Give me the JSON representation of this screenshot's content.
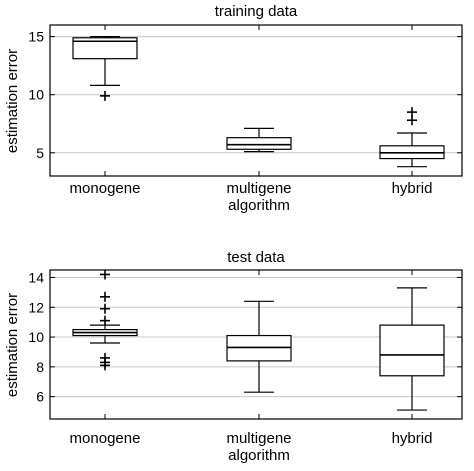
{
  "chart_data": [
    {
      "type": "box",
      "title": "training data",
      "ylabel": "estimation error",
      "categories": [
        "monogene",
        "multigene\nalgorithm",
        "hybrid"
      ],
      "ylim": [
        3,
        16
      ],
      "yticks": [
        5,
        10,
        15
      ],
      "grid": "horizontal",
      "boxes": [
        {
          "whisker_low": 10.8,
          "q1": 13.1,
          "median": 14.6,
          "q3": 14.9,
          "whisker_high": 15.0,
          "outliers": [
            9.9
          ]
        },
        {
          "whisker_low": 5.1,
          "q1": 5.3,
          "median": 5.7,
          "q3": 6.3,
          "whisker_high": 7.1,
          "outliers": []
        },
        {
          "whisker_low": 3.8,
          "q1": 4.5,
          "median": 5.0,
          "q3": 5.6,
          "whisker_high": 6.7,
          "outliers": [
            7.8,
            8.5
          ]
        }
      ]
    },
    {
      "type": "box",
      "title": "test data",
      "ylabel": "estimation error",
      "categories": [
        "monogene",
        "multigene\nalgorithm",
        "hybrid"
      ],
      "ylim": [
        4.5,
        14.5
      ],
      "yticks": [
        6,
        8,
        10,
        12,
        14
      ],
      "grid": "horizontal",
      "boxes": [
        {
          "whisker_low": 9.6,
          "q1": 10.1,
          "median": 10.3,
          "q3": 10.5,
          "whisker_high": 10.8,
          "outliers": [
            14.2,
            12.7,
            11.9,
            11.1,
            8.6,
            8.3,
            8.1
          ]
        },
        {
          "whisker_low": 6.3,
          "q1": 8.4,
          "median": 9.3,
          "q3": 10.1,
          "whisker_high": 12.4,
          "outliers": []
        },
        {
          "whisker_low": 5.1,
          "q1": 7.4,
          "median": 8.8,
          "q3": 10.8,
          "whisker_high": 13.3,
          "outliers": []
        }
      ]
    }
  ]
}
